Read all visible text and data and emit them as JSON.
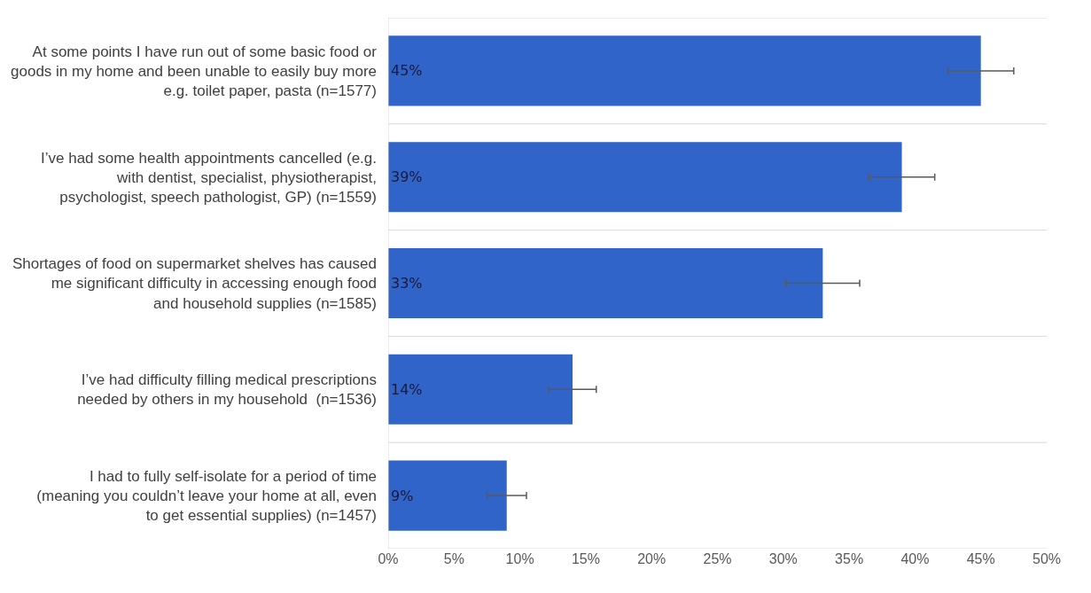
{
  "chart_data": {
    "type": "bar",
    "orientation": "horizontal",
    "categories": [
      "At some points I have run out of some basic food or goods in my home and been unable to easily buy more e.g. toilet paper, pasta (n=1577)",
      "I’ve had some health appointments cancelled (e.g. with dentist, specialist, physiotherapist, psychologist, speech pathologist, GP) (n=1559)",
      "Shortages of food on supermarket shelves has caused me significant difficulty in accessing enough food and household supplies (n=1585)",
      "I’ve had difficulty filling medical prescriptions needed by others in my household  (n=1536)",
      "I had to fully self-isolate for a period of time (meaning you couldn’t leave your home at all, even to get essential supplies) (n=1457)"
    ],
    "values": [
      45,
      39,
      33,
      14,
      9
    ],
    "errors": [
      2.5,
      2.5,
      2.8,
      1.8,
      1.5
    ],
    "value_labels": [
      "45%",
      "39%",
      "33%",
      "14%",
      "9%"
    ],
    "color": "#3164c9",
    "xlim": [
      0,
      50
    ],
    "xticks": [
      {
        "value": 0,
        "label": "0%"
      },
      {
        "value": 5,
        "label": "5%"
      },
      {
        "value": 10,
        "label": "10%"
      },
      {
        "value": 15,
        "label": "15%"
      },
      {
        "value": 20,
        "label": "20%"
      },
      {
        "value": 25,
        "label": "25%"
      },
      {
        "value": 30,
        "label": "30%"
      },
      {
        "value": 35,
        "label": "35%"
      },
      {
        "value": 40,
        "label": "40%"
      },
      {
        "value": 45,
        "label": "45%"
      },
      {
        "value": 50,
        "label": "50%"
      }
    ],
    "grid": "y"
  }
}
